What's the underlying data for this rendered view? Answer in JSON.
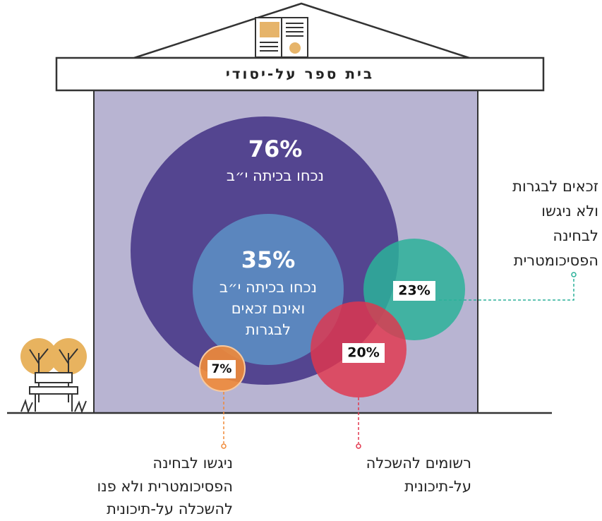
{
  "header": {
    "title": "בית ספר על-יסודי"
  },
  "circles": [
    {
      "percent": "76%",
      "lines": [
        "נכחו בכיתה י״ב"
      ]
    },
    {
      "percent": "35%",
      "lines": [
        "נכחו בכיתה י״ב",
        "ואינם זכאים",
        "לבגרות"
      ]
    },
    {
      "percent": "23%",
      "lines": [
        "זכאים לבגרות",
        "ולא ניגשו",
        "לבחינה",
        "הפסיכומטרית"
      ]
    },
    {
      "percent": "20%",
      "lines": [
        "רשומים להשכלה",
        "על-תיכונית"
      ]
    },
    {
      "percent": "7%",
      "lines": [
        "ניגשו לבחינה",
        "הפסיכומטרית ולא פנו",
        "להשכלה על-תיכונית"
      ]
    }
  ]
}
